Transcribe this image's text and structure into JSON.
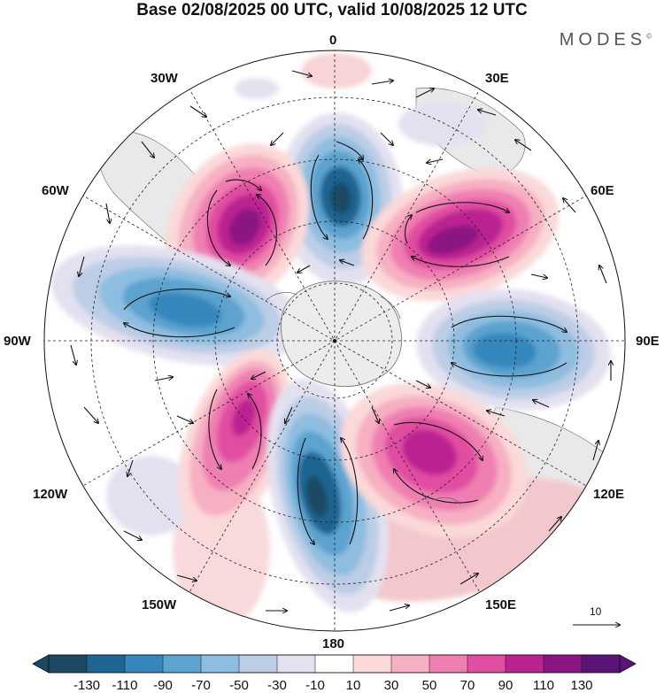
{
  "title": "Base 02/08/2025 00 UTC, valid 10/08/2025 12 UTC",
  "brand": "MODES",
  "brand_mark": "©",
  "map_labels": {
    "top": "0",
    "bottom": "180",
    "left": "90W",
    "right": "90E",
    "w30": "30W",
    "e30": "30E",
    "w60": "60W",
    "e60": "60E",
    "w120": "120W",
    "e120": "120E",
    "w150": "150W",
    "e150": "150E"
  },
  "reference_vector": {
    "value": "10"
  },
  "colors": {
    "negative_strong": "#1d4e6e",
    "negative_mid": "#4a94c4",
    "negative_weak": "#dcdcee",
    "positive_weak": "#f7d4d6",
    "positive_mid": "#e06aa8",
    "positive_strong": "#6a1a7c",
    "land": "#e9e9e9"
  },
  "colorbar": {
    "labels": [
      "-130",
      "-110",
      "-90",
      "-70",
      "-50",
      "-30",
      "-10",
      "10",
      "30",
      "50",
      "70",
      "90",
      "110",
      "130"
    ],
    "colors": [
      "#1c4863",
      "#1f6593",
      "#3587bd",
      "#5ca3cf",
      "#8ebde0",
      "#bccde6",
      "#e3e1f0",
      "#ffffff",
      "#fbd9d9",
      "#f6b0c2",
      "#ef7fb2",
      "#e14da0",
      "#bb2391",
      "#8a1683",
      "#5a1476"
    ]
  }
}
